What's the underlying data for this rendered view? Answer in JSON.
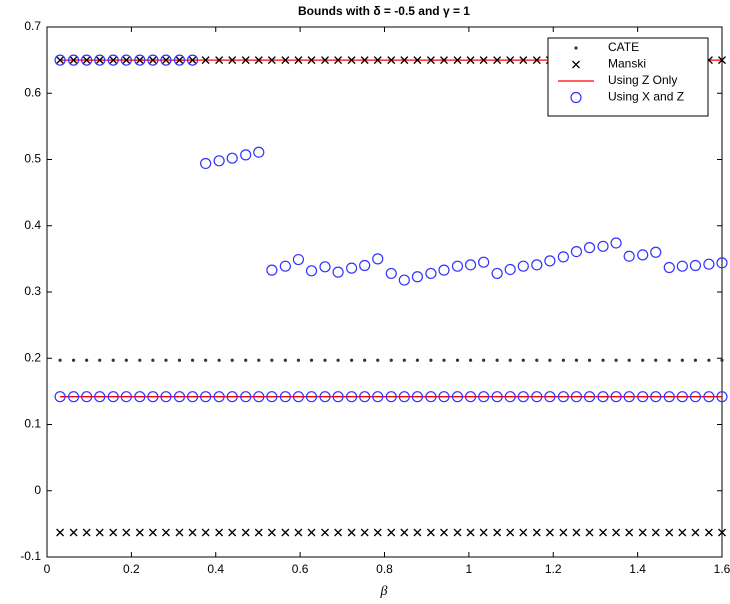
{
  "chart_data": {
    "type": "scatter",
    "title": "Bounds with δ = -0.5 and γ = 1",
    "x_label": "β",
    "x": [
      0.031,
      0.063,
      0.094,
      0.125,
      0.157,
      0.188,
      0.22,
      0.251,
      0.282,
      0.314,
      0.345,
      0.376,
      0.408,
      0.439,
      0.471,
      0.502,
      0.533,
      0.565,
      0.596,
      0.627,
      0.659,
      0.69,
      0.722,
      0.753,
      0.784,
      0.816,
      0.847,
      0.878,
      0.91,
      0.941,
      0.973,
      1.004,
      1.035,
      1.067,
      1.098,
      1.129,
      1.161,
      1.192,
      1.224,
      1.255,
      1.286,
      1.318,
      1.349,
      1.38,
      1.412,
      1.443,
      1.475,
      1.506,
      1.537,
      1.569,
      1.6
    ],
    "xlim": [
      0,
      1.6
    ],
    "xticks": [
      0,
      0.2,
      0.4,
      0.6,
      0.8,
      1,
      1.2,
      1.4,
      1.6
    ],
    "ylim": [
      -0.1,
      0.7
    ],
    "yticks": [
      -0.1,
      0,
      0.1,
      0.2,
      0.3,
      0.4,
      0.5,
      0.6,
      0.7
    ],
    "legend": "upper right",
    "series": [
      {
        "name": "CATE",
        "marker": "dot",
        "color": "#333333",
        "values": [
          0.197,
          0.197,
          0.197,
          0.197,
          0.197,
          0.197,
          0.197,
          0.197,
          0.197,
          0.197,
          0.197,
          0.197,
          0.197,
          0.197,
          0.197,
          0.197,
          0.197,
          0.197,
          0.197,
          0.197,
          0.197,
          0.197,
          0.197,
          0.197,
          0.197,
          0.197,
          0.197,
          0.197,
          0.197,
          0.197,
          0.197,
          0.197,
          0.197,
          0.197,
          0.197,
          0.197,
          0.197,
          0.197,
          0.197,
          0.197,
          0.197,
          0.197,
          0.197,
          0.197,
          0.197,
          0.197,
          0.197,
          0.197,
          0.197,
          0.197,
          0.197
        ]
      },
      {
        "name": "Manski",
        "marker": "x",
        "color": "#000000",
        "upper": [
          0.65,
          0.65,
          0.65,
          0.65,
          0.65,
          0.65,
          0.65,
          0.65,
          0.65,
          0.65,
          0.65,
          0.65,
          0.65,
          0.65,
          0.65,
          0.65,
          0.65,
          0.65,
          0.65,
          0.65,
          0.65,
          0.65,
          0.65,
          0.65,
          0.65,
          0.65,
          0.65,
          0.65,
          0.65,
          0.65,
          0.65,
          0.65,
          0.65,
          0.65,
          0.65,
          0.65,
          0.65,
          0.65,
          0.65,
          0.65,
          0.65,
          0.65,
          0.65,
          0.65,
          0.65,
          0.65,
          0.65,
          0.65,
          0.65,
          0.65,
          0.65
        ],
        "lower": [
          -0.063,
          -0.063,
          -0.063,
          -0.063,
          -0.063,
          -0.063,
          -0.063,
          -0.063,
          -0.063,
          -0.063,
          -0.063,
          -0.063,
          -0.063,
          -0.063,
          -0.063,
          -0.063,
          -0.063,
          -0.063,
          -0.063,
          -0.063,
          -0.063,
          -0.063,
          -0.063,
          -0.063,
          -0.063,
          -0.063,
          -0.063,
          -0.063,
          -0.063,
          -0.063,
          -0.063,
          -0.063,
          -0.063,
          -0.063,
          -0.063,
          -0.063,
          -0.063,
          -0.063,
          -0.063,
          -0.063,
          -0.063,
          -0.063,
          -0.063,
          -0.063,
          -0.063,
          -0.063,
          -0.063,
          -0.063,
          -0.063,
          -0.063,
          -0.063
        ]
      },
      {
        "name": "Using Z Only",
        "marker": "line",
        "color": "#ff0000",
        "upper": [
          0.65,
          0.65,
          0.65,
          0.65,
          0.65,
          0.65,
          0.65,
          0.65,
          0.65,
          0.65,
          0.65,
          0.65,
          0.65,
          0.65,
          0.65,
          0.65,
          0.65,
          0.65,
          0.65,
          0.65,
          0.65,
          0.65,
          0.65,
          0.65,
          0.65,
          0.65,
          0.65,
          0.65,
          0.65,
          0.65,
          0.65,
          0.65,
          0.65,
          0.65,
          0.65,
          0.65,
          0.65,
          0.65,
          0.65,
          0.65,
          0.65,
          0.65,
          0.65,
          0.65,
          0.65,
          0.65,
          0.65,
          0.65,
          0.65,
          0.65,
          0.65
        ],
        "lower": [
          0.142,
          0.142,
          0.142,
          0.142,
          0.142,
          0.142,
          0.142,
          0.142,
          0.142,
          0.142,
          0.142,
          0.142,
          0.142,
          0.142,
          0.142,
          0.142,
          0.142,
          0.142,
          0.142,
          0.142,
          0.142,
          0.142,
          0.142,
          0.142,
          0.142,
          0.142,
          0.142,
          0.142,
          0.142,
          0.142,
          0.142,
          0.142,
          0.142,
          0.142,
          0.142,
          0.142,
          0.142,
          0.142,
          0.142,
          0.142,
          0.142,
          0.142,
          0.142,
          0.142,
          0.142,
          0.142,
          0.142,
          0.142,
          0.142,
          0.142,
          0.142
        ]
      },
      {
        "name": "Using X and Z",
        "marker": "circle",
        "color": "#3333ff",
        "upper": [
          0.65,
          0.65,
          0.65,
          0.65,
          0.65,
          0.65,
          0.65,
          0.65,
          0.65,
          0.65,
          0.65,
          0.494,
          0.498,
          0.502,
          0.507,
          0.511,
          0.333,
          0.339,
          0.349,
          0.332,
          0.338,
          0.33,
          0.336,
          0.34,
          0.35,
          0.328,
          0.318,
          0.323,
          0.328,
          0.333,
          0.339,
          0.341,
          0.345,
          0.328,
          0.334,
          0.339,
          0.341,
          0.347,
          0.353,
          0.361,
          0.367,
          0.369,
          0.374,
          0.354,
          0.356,
          0.36,
          0.337,
          0.339,
          0.34,
          0.342,
          0.344
        ],
        "lower": [
          0.142,
          0.142,
          0.142,
          0.142,
          0.142,
          0.142,
          0.142,
          0.142,
          0.142,
          0.142,
          0.142,
          0.142,
          0.142,
          0.142,
          0.142,
          0.142,
          0.142,
          0.142,
          0.142,
          0.142,
          0.142,
          0.142,
          0.142,
          0.142,
          0.142,
          0.142,
          0.142,
          0.142,
          0.142,
          0.142,
          0.142,
          0.142,
          0.142,
          0.142,
          0.142,
          0.142,
          0.142,
          0.142,
          0.142,
          0.142,
          0.142,
          0.142,
          0.142,
          0.142,
          0.142,
          0.142,
          0.142,
          0.142,
          0.142,
          0.142,
          0.142
        ]
      }
    ]
  }
}
